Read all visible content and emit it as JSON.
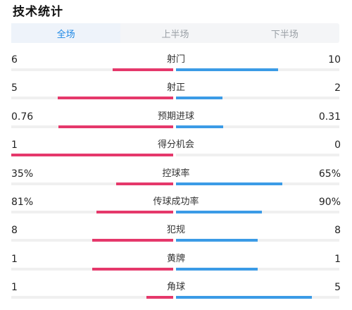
{
  "title": "技术统计",
  "tabs": [
    {
      "label": "全场",
      "active": true
    },
    {
      "label": "上半场",
      "active": false
    },
    {
      "label": "下半场",
      "active": false
    }
  ],
  "colors": {
    "home": "#e5386b",
    "away": "#3b9be6",
    "active_tab": "#1e88e5"
  },
  "stats": [
    {
      "label": "射门",
      "home": "6",
      "away": "10",
      "home_ratio": 0.375,
      "away_ratio": 0.625
    },
    {
      "label": "射正",
      "home": "5",
      "away": "2",
      "home_ratio": 0.714,
      "away_ratio": 0.286
    },
    {
      "label": "预期进球",
      "home": "0.76",
      "away": "0.31",
      "home_ratio": 0.71,
      "away_ratio": 0.29
    },
    {
      "label": "得分机会",
      "home": "1",
      "away": "0",
      "home_ratio": 1.0,
      "away_ratio": 0.0
    },
    {
      "label": "控球率",
      "home": "35%",
      "away": "65%",
      "home_ratio": 0.35,
      "away_ratio": 0.65
    },
    {
      "label": "传球成功率",
      "home": "81%",
      "away": "90%",
      "home_ratio": 0.474,
      "away_ratio": 0.526
    },
    {
      "label": "犯规",
      "home": "8",
      "away": "8",
      "home_ratio": 0.5,
      "away_ratio": 0.5
    },
    {
      "label": "黄牌",
      "home": "1",
      "away": "1",
      "home_ratio": 0.5,
      "away_ratio": 0.5
    },
    {
      "label": "角球",
      "home": "1",
      "away": "5",
      "home_ratio": 0.167,
      "away_ratio": 0.833
    }
  ]
}
